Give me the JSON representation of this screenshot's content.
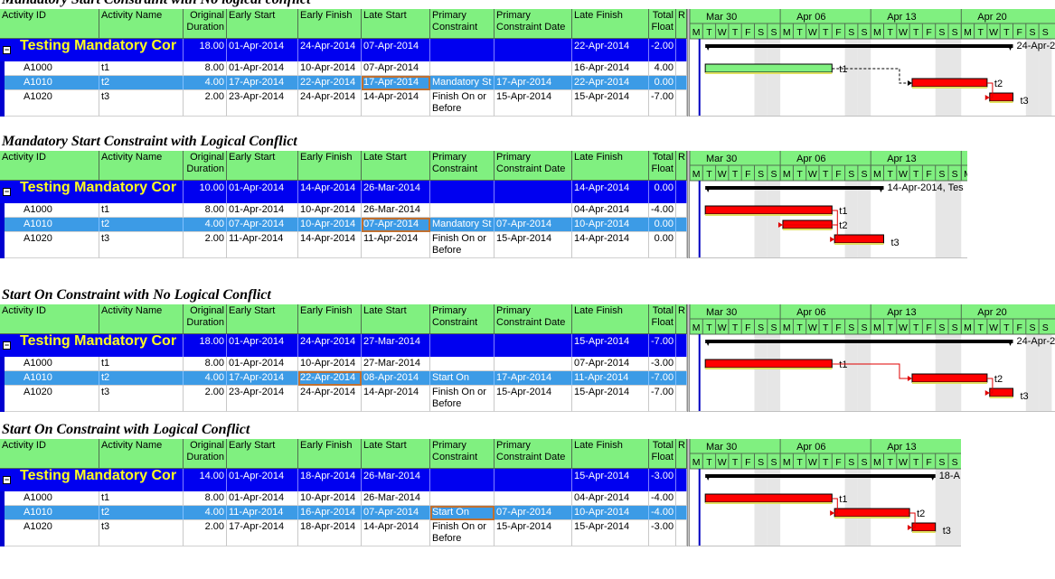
{
  "columns": {
    "activity_id": "Activity ID",
    "activity_name": "Activity Name",
    "original_duration": "Original Duration",
    "early_start": "Early Start",
    "early_finish": "Early Finish",
    "late_start": "Late Start",
    "primary_constraint": "Primary Constraint",
    "primary_constraint_date": "Primary Constraint Date",
    "late_finish": "Late Finish",
    "total_float": "Total Float",
    "r": "R"
  },
  "timescale": {
    "weeks": [
      "Mar 30",
      "Apr 06",
      "Apr 13",
      "Apr 20"
    ],
    "days": [
      "M",
      "T",
      "W",
      "T",
      "F",
      "S",
      "S",
      "M",
      "T",
      "W",
      "T",
      "F",
      "S",
      "S",
      "M",
      "T",
      "W",
      "T",
      "F",
      "S",
      "S",
      "M",
      "T",
      "W",
      "T",
      "F",
      "S",
      "S"
    ]
  },
  "colors": {
    "header_green": "#80f080",
    "group_blue": "#0000f0",
    "group_text": "#ffff20",
    "selected_row": "#3c9be6",
    "critical_bar": "#ff0000",
    "noncritical_bar": "#80f080",
    "weekend_shade": "#e6e6e6",
    "data_date_line": "#0000c0"
  },
  "sections": [
    {
      "title": "Mandatory Start Constraint with No logical conflict",
      "group": {
        "name": "Testing Mandatory Cor",
        "duration": "18.00",
        "early_start": "01-Apr-2014",
        "early_finish": "24-Apr-2014",
        "late_start": "07-Apr-2014",
        "constraint": "",
        "constraint_date": "",
        "late_finish": "22-Apr-2014",
        "total_float": "-2.00",
        "bar_label": "24-Apr-2"
      },
      "rows": [
        {
          "id": "A1000",
          "name": "t1",
          "duration": "8.00",
          "early_start": "01-Apr-2014",
          "early_finish": "10-Apr-2014",
          "late_start": "07-Apr-2014",
          "constraint": "",
          "constraint_date": "",
          "late_finish": "16-Apr-2014",
          "total_float": "4.00",
          "bar_label": "t1"
        },
        {
          "id": "A1010",
          "name": "t2",
          "duration": "4.00",
          "early_start": "17-Apr-2014",
          "early_finish": "22-Apr-2014",
          "late_start": "17-Apr-2014",
          "constraint": "Mandatory St",
          "constraint_date": "17-Apr-2014",
          "late_finish": "22-Apr-2014",
          "total_float": "0.00",
          "bar_label": "t2"
        },
        {
          "id": "A1020",
          "name": "t3",
          "duration": "2.00",
          "early_start": "23-Apr-2014",
          "early_finish": "24-Apr-2014",
          "late_start": "14-Apr-2014",
          "constraint": "Finish On or Before",
          "constraint_date": "15-Apr-2014",
          "late_finish": "15-Apr-2014",
          "total_float": "-7.00",
          "bar_label": "t3"
        }
      ]
    },
    {
      "title": "Mandatory Start Constraint with Logical Conflict",
      "group": {
        "name": "Testing Mandatory Cor",
        "duration": "10.00",
        "early_start": "01-Apr-2014",
        "early_finish": "14-Apr-2014",
        "late_start": "26-Mar-2014",
        "constraint": "",
        "constraint_date": "",
        "late_finish": "14-Apr-2014",
        "total_float": "0.00",
        "bar_label": "14-Apr-2014, Tes"
      },
      "rows": [
        {
          "id": "A1000",
          "name": "t1",
          "duration": "8.00",
          "early_start": "01-Apr-2014",
          "early_finish": "10-Apr-2014",
          "late_start": "26-Mar-2014",
          "constraint": "",
          "constraint_date": "",
          "late_finish": "04-Apr-2014",
          "total_float": "-4.00",
          "bar_label": "t1"
        },
        {
          "id": "A1010",
          "name": "t2",
          "duration": "4.00",
          "early_start": "07-Apr-2014",
          "early_finish": "10-Apr-2014",
          "late_start": "07-Apr-2014",
          "constraint": "Mandatory St",
          "constraint_date": "07-Apr-2014",
          "late_finish": "10-Apr-2014",
          "total_float": "0.00",
          "bar_label": "t2"
        },
        {
          "id": "A1020",
          "name": "t3",
          "duration": "2.00",
          "early_start": "11-Apr-2014",
          "early_finish": "14-Apr-2014",
          "late_start": "11-Apr-2014",
          "constraint": "Finish On or Before",
          "constraint_date": "15-Apr-2014",
          "late_finish": "14-Apr-2014",
          "total_float": "0.00",
          "bar_label": "t3"
        }
      ]
    },
    {
      "title": "Start On Constraint with No Logical Conflict",
      "group": {
        "name": "Testing Mandatory Cor",
        "duration": "18.00",
        "early_start": "01-Apr-2014",
        "early_finish": "24-Apr-2014",
        "late_start": "27-Mar-2014",
        "constraint": "",
        "constraint_date": "",
        "late_finish": "15-Apr-2014",
        "total_float": "-7.00",
        "bar_label": "24-Apr-2"
      },
      "rows": [
        {
          "id": "A1000",
          "name": "t1",
          "duration": "8.00",
          "early_start": "01-Apr-2014",
          "early_finish": "10-Apr-2014",
          "late_start": "27-Mar-2014",
          "constraint": "",
          "constraint_date": "",
          "late_finish": "07-Apr-2014",
          "total_float": "-3.00",
          "bar_label": "t1"
        },
        {
          "id": "A1010",
          "name": "t2",
          "duration": "4.00",
          "early_start": "17-Apr-2014",
          "early_finish": "22-Apr-2014",
          "late_start": "08-Apr-2014",
          "constraint": "Start On",
          "constraint_date": "17-Apr-2014",
          "late_finish": "11-Apr-2014",
          "total_float": "-7.00",
          "bar_label": "t2"
        },
        {
          "id": "A1020",
          "name": "t3",
          "duration": "2.00",
          "early_start": "23-Apr-2014",
          "early_finish": "24-Apr-2014",
          "late_start": "14-Apr-2014",
          "constraint": "Finish On or Before",
          "constraint_date": "15-Apr-2014",
          "late_finish": "15-Apr-2014",
          "total_float": "-7.00",
          "bar_label": "t3"
        }
      ]
    },
    {
      "title": "Start On Constraint with Logical Conflict",
      "group": {
        "name": "Testing Mandatory Cor",
        "duration": "14.00",
        "early_start": "01-Apr-2014",
        "early_finish": "18-Apr-2014",
        "late_start": "26-Mar-2014",
        "constraint": "",
        "constraint_date": "",
        "late_finish": "15-Apr-2014",
        "total_float": "-3.00",
        "bar_label": "18-A"
      },
      "rows": [
        {
          "id": "A1000",
          "name": "t1",
          "duration": "8.00",
          "early_start": "01-Apr-2014",
          "early_finish": "10-Apr-2014",
          "late_start": "26-Mar-2014",
          "constraint": "",
          "constraint_date": "",
          "late_finish": "04-Apr-2014",
          "total_float": "-4.00",
          "bar_label": "t1"
        },
        {
          "id": "A1010",
          "name": "t2",
          "duration": "4.00",
          "early_start": "11-Apr-2014",
          "early_finish": "16-Apr-2014",
          "late_start": "07-Apr-2014",
          "constraint": "Start On",
          "constraint_date": "07-Apr-2014",
          "late_finish": "10-Apr-2014",
          "total_float": "-4.00",
          "bar_label": "t2"
        },
        {
          "id": "A1020",
          "name": "t3",
          "duration": "2.00",
          "early_start": "17-Apr-2014",
          "early_finish": "18-Apr-2014",
          "late_start": "14-Apr-2014",
          "constraint": "Finish On or Before",
          "constraint_date": "15-Apr-2014",
          "late_finish": "15-Apr-2014",
          "total_float": "-3.00",
          "bar_label": "t3"
        }
      ]
    }
  ]
}
